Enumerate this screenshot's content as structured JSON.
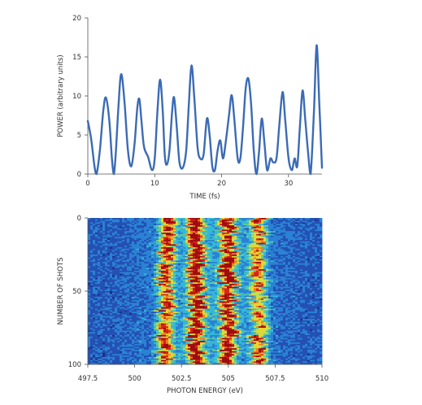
{
  "chart_data": [
    {
      "type": "line",
      "xlabel": "TIME (fs)",
      "ylabel": "POWER (arbitrary units)",
      "xlim": [
        0,
        35
      ],
      "ylim": [
        0,
        20
      ],
      "xticks": [
        "0",
        "10",
        "20",
        "30"
      ],
      "yticks": [
        "0",
        "5",
        "10",
        "15",
        "20"
      ],
      "color": "#3b6bb5",
      "series": [
        {
          "points": [
            [
              0,
              6.8
            ],
            [
              0.5,
              4.5
            ],
            [
              1.0,
              1.0
            ],
            [
              1.3,
              0.0
            ],
            [
              1.8,
              3.0
            ],
            [
              2.3,
              8.0
            ],
            [
              2.7,
              9.8
            ],
            [
              3.2,
              7.0
            ],
            [
              3.6,
              2.0
            ],
            [
              3.9,
              0.0
            ],
            [
              4.2,
              3.0
            ],
            [
              4.6,
              9.0
            ],
            [
              5.0,
              12.8
            ],
            [
              5.5,
              9.0
            ],
            [
              6.0,
              3.0
            ],
            [
              6.5,
              1.0
            ],
            [
              7.0,
              4.0
            ],
            [
              7.4,
              8.5
            ],
            [
              7.7,
              9.6
            ],
            [
              8.0,
              7.0
            ],
            [
              8.4,
              3.5
            ],
            [
              9.0,
              2.2
            ],
            [
              9.6,
              0.5
            ],
            [
              10.0,
              2.0
            ],
            [
              10.4,
              8.0
            ],
            [
              10.8,
              12.1
            ],
            [
              11.2,
              8.0
            ],
            [
              11.5,
              2.5
            ],
            [
              11.8,
              1.2
            ],
            [
              12.2,
              3.0
            ],
            [
              12.6,
              8.0
            ],
            [
              12.9,
              9.8
            ],
            [
              13.3,
              6.0
            ],
            [
              13.7,
              1.5
            ],
            [
              14.2,
              0.8
            ],
            [
              14.7,
              3.0
            ],
            [
              15.1,
              9.0
            ],
            [
              15.5,
              13.9
            ],
            [
              15.9,
              10.0
            ],
            [
              16.4,
              3.5
            ],
            [
              16.8,
              2.0
            ],
            [
              17.3,
              2.5
            ],
            [
              17.8,
              7.1
            ],
            [
              18.2,
              5.0
            ],
            [
              18.6,
              1.0
            ],
            [
              19.0,
              0.5
            ],
            [
              19.4,
              3.0
            ],
            [
              19.8,
              4.3
            ],
            [
              20.2,
              2.0
            ],
            [
              20.6,
              4.0
            ],
            [
              21.1,
              7.5
            ],
            [
              21.5,
              10.1
            ],
            [
              21.9,
              7.0
            ],
            [
              22.4,
              2.0
            ],
            [
              22.8,
              2.0
            ],
            [
              23.2,
              6.0
            ],
            [
              23.6,
              11.0
            ],
            [
              24.0,
              12.2
            ],
            [
              24.4,
              9.0
            ],
            [
              24.8,
              3.0
            ],
            [
              25.2,
              0.0
            ],
            [
              25.6,
              3.0
            ],
            [
              26.0,
              7.1
            ],
            [
              26.4,
              4.0
            ],
            [
              26.8,
              0.5
            ],
            [
              27.3,
              2.0
            ],
            [
              27.7,
              1.5
            ],
            [
              28.2,
              2.0
            ],
            [
              28.6,
              6.0
            ],
            [
              29.1,
              10.5
            ],
            [
              29.5,
              7.0
            ],
            [
              30.0,
              2.0
            ],
            [
              30.5,
              0.5
            ],
            [
              30.9,
              2.0
            ],
            [
              31.3,
              1.0
            ],
            [
              31.7,
              6.0
            ],
            [
              32.1,
              10.7
            ],
            [
              32.5,
              7.0
            ],
            [
              32.9,
              3.0
            ],
            [
              33.3,
              0.0
            ],
            [
              33.8,
              8.0
            ],
            [
              34.2,
              16.5
            ],
            [
              34.6,
              9.0
            ],
            [
              35.0,
              0.8
            ]
          ]
        }
      ]
    },
    {
      "type": "heatmap",
      "xlabel": "PHOTON ENERGY (eV)",
      "ylabel": "NUMBER OF SHOTS",
      "xlim": [
        497.5,
        510
      ],
      "ylim": [
        100,
        0
      ],
      "xticks": [
        "497.5",
        "500",
        "502.5",
        "505",
        "507.5",
        "510"
      ],
      "yticks": [
        "0",
        "50",
        "100"
      ],
      "shots": 100,
      "peaks_eV": [
        501.7,
        503.3,
        505.0,
        506.6
      ],
      "peak_intensity": [
        0.72,
        0.85,
        0.82,
        0.6
      ],
      "colormap": [
        "#1d2f86",
        "#2450b4",
        "#2a82d4",
        "#35b7d6",
        "#66cc98",
        "#c9e04b",
        "#f1d32a",
        "#ef7d1f",
        "#d6261a",
        "#9e0d12"
      ]
    }
  ]
}
